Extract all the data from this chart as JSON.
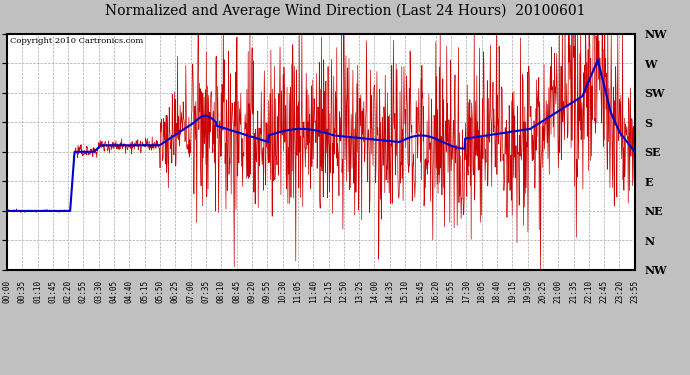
{
  "title": "Normalized and Average Wind Direction (Last 24 Hours)  20100601",
  "copyright": "Copyright 2010 Cartronics.com",
  "fig_bg_color": "#c0c0c0",
  "plot_bg_color": "#ffffff",
  "grid_color": "#aaaaaa",
  "y_labels": [
    "NW",
    "W",
    "SW",
    "S",
    "SE",
    "E",
    "NE",
    "N",
    "NW"
  ],
  "y_ticks": [
    360,
    315,
    270,
    225,
    180,
    135,
    90,
    45,
    0
  ],
  "x_tick_labels": [
    "00:00",
    "00:35",
    "01:10",
    "01:45",
    "02:20",
    "02:55",
    "03:30",
    "04:05",
    "04:40",
    "05:15",
    "05:50",
    "06:25",
    "07:00",
    "07:35",
    "08:10",
    "08:45",
    "09:20",
    "09:55",
    "10:30",
    "11:05",
    "11:40",
    "12:15",
    "12:50",
    "13:25",
    "14:00",
    "14:35",
    "15:10",
    "15:45",
    "16:20",
    "16:55",
    "17:30",
    "18:05",
    "18:40",
    "19:15",
    "19:50",
    "20:25",
    "21:00",
    "21:35",
    "22:10",
    "22:45",
    "23:20",
    "23:55"
  ],
  "red_line_color": "#cc0000",
  "blue_line_color": "#0000cc",
  "title_fontsize": 10,
  "copyright_fontsize": 6,
  "ymin": 0,
  "ymax": 360,
  "xmin": 0,
  "xmax": 1440
}
